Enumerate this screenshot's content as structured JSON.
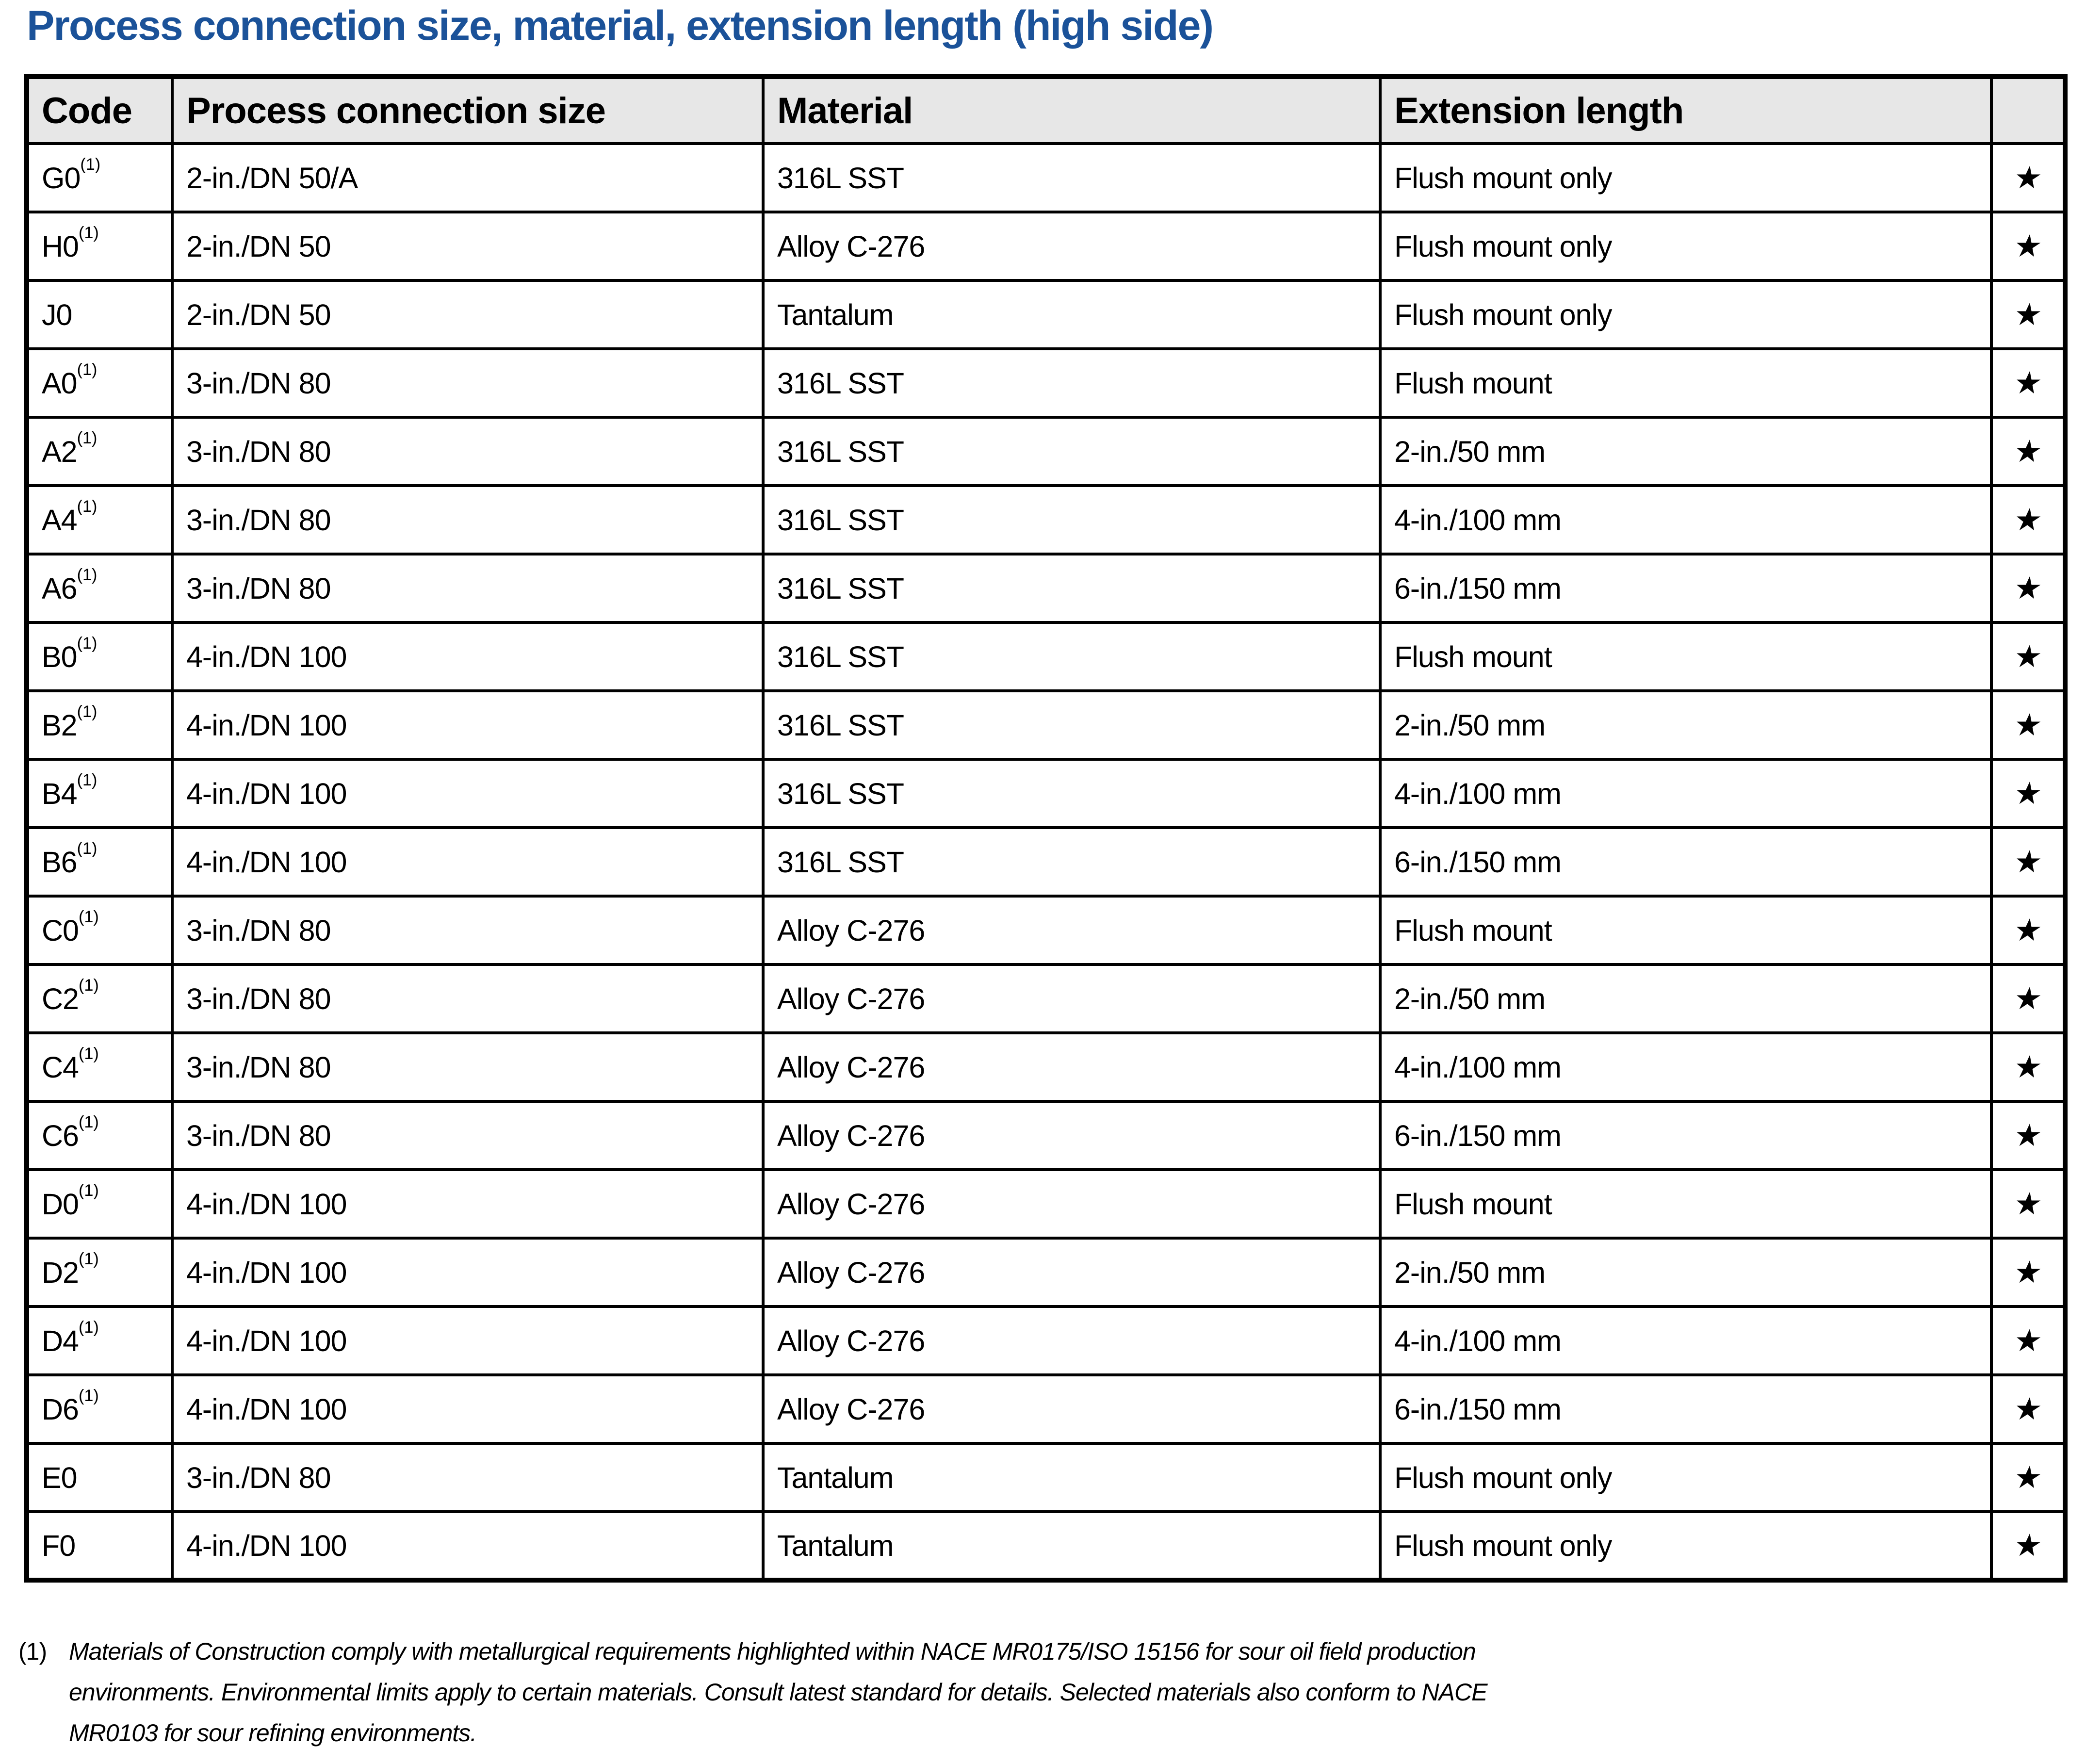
{
  "title": "Process connection size, material, extension length (high side)",
  "colors": {
    "title_blue": "#1b5299",
    "header_gray": "#e7e7e7",
    "border_black": "#000000",
    "text_black": "#000000"
  },
  "table": {
    "headers": [
      "Code",
      "Process connection size",
      "Material",
      "Extension length",
      ""
    ],
    "star_symbol": "★",
    "rows": [
      {
        "code": "G0",
        "footnote_sup": "(1)",
        "process_connection_size": "2-in./DN 50/A",
        "material": "316L SST",
        "extension_length": "Flush mount only",
        "starred": true
      },
      {
        "code": "H0",
        "footnote_sup": "(1)",
        "process_connection_size": "2-in./DN 50",
        "material": "Alloy C-276",
        "extension_length": "Flush mount only",
        "starred": true
      },
      {
        "code": "J0",
        "footnote_sup": "",
        "process_connection_size": "2-in./DN 50",
        "material": "Tantalum",
        "extension_length": "Flush mount only",
        "starred": true
      },
      {
        "code": "A0",
        "footnote_sup": "(1)",
        "process_connection_size": "3-in./DN 80",
        "material": "316L SST",
        "extension_length": "Flush mount",
        "starred": true
      },
      {
        "code": "A2",
        "footnote_sup": "(1)",
        "process_connection_size": "3-in./DN 80",
        "material": "316L SST",
        "extension_length": "2-in./50 mm",
        "starred": true
      },
      {
        "code": "A4",
        "footnote_sup": "(1)",
        "process_connection_size": "3-in./DN 80",
        "material": "316L SST",
        "extension_length": "4-in./100 mm",
        "starred": true
      },
      {
        "code": "A6",
        "footnote_sup": "(1)",
        "process_connection_size": "3-in./DN 80",
        "material": "316L SST",
        "extension_length": "6-in./150 mm",
        "starred": true
      },
      {
        "code": "B0",
        "footnote_sup": "(1)",
        "process_connection_size": "4-in./DN 100",
        "material": "316L SST",
        "extension_length": "Flush mount",
        "starred": true
      },
      {
        "code": "B2",
        "footnote_sup": "(1)",
        "process_connection_size": "4-in./DN 100",
        "material": "316L SST",
        "extension_length": "2-in./50 mm",
        "starred": true
      },
      {
        "code": "B4",
        "footnote_sup": "(1)",
        "process_connection_size": "4-in./DN 100",
        "material": "316L SST",
        "extension_length": "4-in./100 mm",
        "starred": true
      },
      {
        "code": "B6",
        "footnote_sup": "(1)",
        "process_connection_size": "4-in./DN 100",
        "material": "316L SST",
        "extension_length": "6-in./150 mm",
        "starred": true
      },
      {
        "code": "C0",
        "footnote_sup": "(1)",
        "process_connection_size": "3-in./DN 80",
        "material": "Alloy C-276",
        "extension_length": "Flush mount",
        "starred": true
      },
      {
        "code": "C2",
        "footnote_sup": "(1)",
        "process_connection_size": "3-in./DN 80",
        "material": "Alloy C-276",
        "extension_length": "2-in./50 mm",
        "starred": true
      },
      {
        "code": "C4",
        "footnote_sup": "(1)",
        "process_connection_size": "3-in./DN 80",
        "material": "Alloy C-276",
        "extension_length": "4-in./100 mm",
        "starred": true
      },
      {
        "code": "C6",
        "footnote_sup": "(1)",
        "process_connection_size": "3-in./DN 80",
        "material": "Alloy C-276",
        "extension_length": "6-in./150 mm",
        "starred": true
      },
      {
        "code": "D0",
        "footnote_sup": "(1)",
        "process_connection_size": "4-in./DN 100",
        "material": "Alloy C-276",
        "extension_length": "Flush mount",
        "starred": true
      },
      {
        "code": "D2",
        "footnote_sup": "(1)",
        "process_connection_size": "4-in./DN 100",
        "material": "Alloy C-276",
        "extension_length": "2-in./50 mm",
        "starred": true
      },
      {
        "code": "D4",
        "footnote_sup": "(1)",
        "process_connection_size": "4-in./DN 100",
        "material": "Alloy C-276",
        "extension_length": "4-in./100 mm",
        "starred": true
      },
      {
        "code": "D6",
        "footnote_sup": "(1)",
        "process_connection_size": "4-in./DN 100",
        "material": "Alloy C-276",
        "extension_length": "6-in./150 mm",
        "starred": true
      },
      {
        "code": "E0",
        "footnote_sup": "",
        "process_connection_size": "3-in./DN 80",
        "material": "Tantalum",
        "extension_length": "Flush mount only",
        "starred": true
      },
      {
        "code": "F0",
        "footnote_sup": "",
        "process_connection_size": "4-in./DN 100",
        "material": "Tantalum",
        "extension_length": "Flush mount only",
        "starred": true
      }
    ]
  },
  "footnote": {
    "marker": "(1)",
    "lines": [
      "Materials of Construction comply with metallurgical requirements highlighted within NACE MR0175/ISO 15156 for sour oil field production",
      "environments. Environmental limits apply to certain materials. Consult latest standard for details. Selected materials also conform to NACE",
      "MR0103 for sour refining environments."
    ]
  }
}
